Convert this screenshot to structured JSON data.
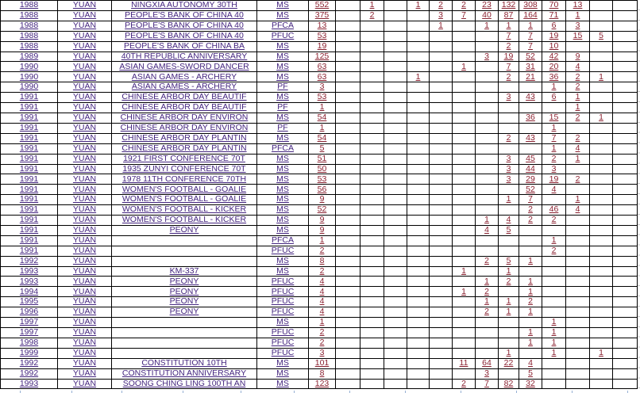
{
  "colors": {
    "link_label_text": "#44257f",
    "link_number_text": "#8a2130",
    "table_grid": "#000000",
    "outside_gridline": "#c9c9c9",
    "partial_row_border": "#97b1d4"
  },
  "table": {
    "column_roles": [
      "year",
      "denomination",
      "description",
      "grade_type",
      "total",
      "grade-bucket x13"
    ],
    "rows": [
      {
        "year": "1988",
        "denom": "YUAN",
        "desc": "NINGXIA AUTONOMY 30TH",
        "grade": "MS",
        "count": "552",
        "cells": [
          "",
          "1",
          "",
          "1",
          "2",
          "2",
          "23",
          "132",
          "308",
          "70",
          "13",
          "",
          ""
        ]
      },
      {
        "year": "1988",
        "denom": "YUAN",
        "desc": "PEOPLE'S BANK OF CHINA 40",
        "grade": "MS",
        "count": "375",
        "cells": [
          "",
          "2",
          "",
          "",
          "3",
          "7",
          "40",
          "87",
          "164",
          "71",
          "1",
          "",
          ""
        ]
      },
      {
        "year": "1988",
        "denom": "YUAN",
        "desc": "PEOPLE'S BANK OF CHINA 40",
        "grade": "PFCA",
        "count": "13",
        "cells": [
          "",
          "",
          "",
          "",
          "1",
          "",
          "1",
          "1",
          "1",
          "6",
          "3",
          "",
          ""
        ]
      },
      {
        "year": "1988",
        "denom": "YUAN",
        "desc": "PEOPLE'S BANK OF CHINA 40",
        "grade": "PFUC",
        "count": "53",
        "cells": [
          "",
          "",
          "",
          "",
          "",
          "",
          "",
          "7",
          "7",
          "19",
          "15",
          "5",
          ""
        ]
      },
      {
        "year": "1988",
        "denom": "YUAN",
        "desc": "PEOPLE'S BANK OF CHINA BA",
        "grade": "MS",
        "count": "19",
        "cells": [
          "",
          "",
          "",
          "",
          "",
          "",
          "",
          "2",
          "7",
          "10",
          "",
          "",
          ""
        ]
      },
      {
        "year": "1989",
        "denom": "YUAN",
        "desc": "40TH REPUBLIC ANNIVERSARY",
        "grade": "MS",
        "count": "125",
        "cells": [
          "",
          "",
          "",
          "",
          "",
          "",
          "3",
          "19",
          "52",
          "42",
          "9",
          "",
          ""
        ]
      },
      {
        "year": "1990",
        "denom": "YUAN",
        "desc": "ASIAN GAMES-SWORD DANCER",
        "grade": "MS",
        "count": "63",
        "cells": [
          "",
          "",
          "",
          "",
          "",
          "1",
          "",
          "7",
          "31",
          "20",
          "4",
          "",
          ""
        ]
      },
      {
        "year": "1990",
        "denom": "YUAN",
        "desc": "ASIAN GAMES - ARCHERY",
        "grade": "MS",
        "count": "63",
        "cells": [
          "",
          "",
          "",
          "1",
          "",
          "",
          "",
          "2",
          "21",
          "36",
          "2",
          "1",
          ""
        ]
      },
      {
        "year": "1990",
        "denom": "YUAN",
        "desc": "ASIAN GAMES - ARCHERY",
        "grade": "PF",
        "count": "3",
        "cells": [
          "",
          "",
          "",
          "",
          "",
          "",
          "",
          "",
          "",
          "1",
          "2",
          "",
          ""
        ]
      },
      {
        "year": "1991",
        "denom": "YUAN",
        "desc": "CHINESE ARBOR DAY BEAUTIF",
        "grade": "MS",
        "count": "53",
        "cells": [
          "",
          "",
          "",
          "",
          "",
          "",
          "",
          "3",
          "43",
          "6",
          "1",
          "",
          ""
        ]
      },
      {
        "year": "1991",
        "denom": "YUAN",
        "desc": "CHINESE ARBOR DAY BEAUTIF",
        "grade": "PF",
        "count": "1",
        "cells": [
          "",
          "",
          "",
          "",
          "",
          "",
          "",
          "",
          "",
          "",
          "1",
          "",
          ""
        ]
      },
      {
        "year": "1991",
        "denom": "YUAN",
        "desc": "CHINESE ARBOR DAY ENVIRON",
        "grade": "MS",
        "count": "54",
        "cells": [
          "",
          "",
          "",
          "",
          "",
          "",
          "",
          "",
          "36",
          "15",
          "2",
          "1",
          ""
        ]
      },
      {
        "year": "1991",
        "denom": "YUAN",
        "desc": "CHINESE ARBOR DAY ENVIRON",
        "grade": "PF",
        "count": "1",
        "cells": [
          "",
          "",
          "",
          "",
          "",
          "",
          "",
          "",
          "",
          "1",
          "",
          "",
          ""
        ]
      },
      {
        "year": "1991",
        "denom": "YUAN",
        "desc": "CHINESE ARBOR DAY PLANTIN",
        "grade": "MS",
        "count": "54",
        "cells": [
          "",
          "",
          "",
          "",
          "",
          "",
          "",
          "2",
          "43",
          "7",
          "2",
          "",
          ""
        ]
      },
      {
        "year": "1991",
        "denom": "YUAN",
        "desc": "CHINESE ARBOR DAY PLANTIN",
        "grade": "PFCA",
        "count": "5",
        "cells": [
          "",
          "",
          "",
          "",
          "",
          "",
          "",
          "",
          "",
          "1",
          "4",
          "",
          ""
        ]
      },
      {
        "year": "1991",
        "denom": "YUAN",
        "desc": "1921 FIRST CONFERENCE 70T",
        "grade": "MS",
        "count": "51",
        "cells": [
          "",
          "",
          "",
          "",
          "",
          "",
          "",
          "3",
          "45",
          "2",
          "1",
          "",
          ""
        ]
      },
      {
        "year": "1991",
        "denom": "YUAN",
        "desc": "1935 ZUNYI CONFERENCE 70T",
        "grade": "MS",
        "count": "50",
        "cells": [
          "",
          "",
          "",
          "",
          "",
          "",
          "",
          "3",
          "44",
          "3",
          "",
          "",
          ""
        ]
      },
      {
        "year": "1991",
        "denom": "YUAN",
        "desc": "1978 11TH CONFERENCE 70TH",
        "grade": "MS",
        "count": "53",
        "cells": [
          "",
          "",
          "",
          "",
          "",
          "",
          "",
          "3",
          "29",
          "19",
          "2",
          "",
          ""
        ]
      },
      {
        "year": "1991",
        "denom": "YUAN",
        "desc": "WOMEN'S FOOTBALL - GOALIE",
        "grade": "MS",
        "count": "56",
        "cells": [
          "",
          "",
          "",
          "",
          "",
          "",
          "",
          "",
          "52",
          "4",
          "",
          "",
          ""
        ]
      },
      {
        "year": "1991",
        "denom": "YUAN",
        "desc": "WOMEN'S FOOTBALL - GOALIE",
        "grade": "MS",
        "count": "9",
        "cells": [
          "",
          "",
          "",
          "",
          "",
          "",
          "",
          "1",
          "7",
          "",
          "1",
          "",
          ""
        ]
      },
      {
        "year": "1991",
        "denom": "YUAN",
        "desc": "WOMEN'S FOOTBALL - KICKER",
        "grade": "MS",
        "count": "52",
        "cells": [
          "",
          "",
          "",
          "",
          "",
          "",
          "",
          "",
          "2",
          "46",
          "4",
          "",
          ""
        ]
      },
      {
        "year": "1991",
        "denom": "YUAN",
        "desc": "WOMEN'S FOOTBALL - KICKER",
        "grade": "MS",
        "count": "9",
        "cells": [
          "",
          "",
          "",
          "",
          "",
          "",
          "1",
          "4",
          "2",
          "2",
          "",
          "",
          ""
        ]
      },
      {
        "year": "1991",
        "denom": "YUAN",
        "desc": "PEONY",
        "grade": "MS",
        "count": "9",
        "cells": [
          "",
          "",
          "",
          "",
          "",
          "",
          "4",
          "5",
          "",
          "",
          "",
          "",
          ""
        ]
      },
      {
        "year": "1991",
        "denom": "YUAN",
        "desc": "",
        "grade": "PFCA",
        "count": "1",
        "cells": [
          "",
          "",
          "",
          "",
          "",
          "",
          "",
          "",
          "",
          "1",
          "",
          "",
          ""
        ]
      },
      {
        "year": "1991",
        "denom": "YUAN",
        "desc": "",
        "grade": "PFUC",
        "count": "2",
        "cells": [
          "",
          "",
          "",
          "",
          "",
          "",
          "",
          "",
          "",
          "2",
          "",
          "",
          ""
        ]
      },
      {
        "year": "1992",
        "denom": "YUAN",
        "desc": "",
        "grade": "MS",
        "count": "8",
        "cells": [
          "",
          "",
          "",
          "",
          "",
          "",
          "2",
          "5",
          "1",
          "",
          "",
          "",
          ""
        ]
      },
      {
        "year": "1993",
        "denom": "YUAN",
        "desc": "KM-337",
        "grade": "MS",
        "count": "2",
        "cells": [
          "",
          "",
          "",
          "",
          "",
          "1",
          "",
          "1",
          "",
          "",
          "",
          "",
          ""
        ]
      },
      {
        "year": "1993",
        "denom": "YUAN",
        "desc": "PEONY",
        "grade": "PFUC",
        "count": "4",
        "cells": [
          "",
          "",
          "",
          "",
          "",
          "",
          "1",
          "2",
          "1",
          "",
          "",
          "",
          ""
        ]
      },
      {
        "year": "1994",
        "denom": "YUAN",
        "desc": "PEONY",
        "grade": "PFUC",
        "count": "4",
        "cells": [
          "",
          "",
          "",
          "",
          "",
          "1",
          "2",
          "",
          "1",
          "",
          "",
          "",
          ""
        ]
      },
      {
        "year": "1995",
        "denom": "YUAN",
        "desc": "PEONY",
        "grade": "PFUC",
        "count": "4",
        "cells": [
          "",
          "",
          "",
          "",
          "",
          "",
          "1",
          "1",
          "2",
          "",
          "",
          "",
          ""
        ]
      },
      {
        "year": "1996",
        "denom": "YUAN",
        "desc": "PEONY",
        "grade": "PFUC",
        "count": "4",
        "cells": [
          "",
          "",
          "",
          "",
          "",
          "",
          "2",
          "1",
          "1",
          "",
          "",
          "",
          ""
        ]
      },
      {
        "year": "1997",
        "denom": "YUAN",
        "desc": "",
        "grade": "MS",
        "count": "1",
        "cells": [
          "",
          "",
          "",
          "",
          "",
          "",
          "",
          "",
          "",
          "1",
          "",
          "",
          ""
        ]
      },
      {
        "year": "1997",
        "denom": "YUAN",
        "desc": "",
        "grade": "PFUC",
        "count": "2",
        "cells": [
          "",
          "",
          "",
          "",
          "",
          "",
          "",
          "",
          "1",
          "1",
          "",
          "",
          ""
        ]
      },
      {
        "year": "1998",
        "denom": "YUAN",
        "desc": "",
        "grade": "PFUC",
        "count": "2",
        "cells": [
          "",
          "",
          "",
          "",
          "",
          "",
          "",
          "",
          "1",
          "1",
          "",
          "",
          ""
        ]
      },
      {
        "year": "1999",
        "denom": "YUAN",
        "desc": "",
        "grade": "PFUC",
        "count": "3",
        "cells": [
          "",
          "",
          "",
          "",
          "",
          "",
          "",
          "1",
          "",
          "1",
          "",
          "1",
          ""
        ]
      },
      {
        "year": "1992",
        "denom": "YUAN",
        "desc": "CONSTITUTION 10TH",
        "grade": "MS",
        "count": "101",
        "cells": [
          "",
          "",
          "",
          "",
          "",
          "11",
          "64",
          "22",
          "4",
          "",
          "",
          "",
          ""
        ]
      },
      {
        "year": "1992",
        "denom": "YUAN",
        "desc": "CONSTITUTION ANNIVERSARY",
        "grade": "MS",
        "count": "8",
        "cells": [
          "",
          "",
          "",
          "",
          "",
          "",
          "3",
          "",
          "5",
          "",
          "",
          "",
          ""
        ]
      },
      {
        "year": "1993",
        "denom": "YUAN",
        "desc": "SOONG CHING LING 100TH AN",
        "grade": "MS",
        "count": "123",
        "cells": [
          "",
          "",
          "",
          "",
          "",
          "2",
          "7",
          "82",
          "32",
          "",
          "",
          "",
          ""
        ]
      }
    ]
  }
}
